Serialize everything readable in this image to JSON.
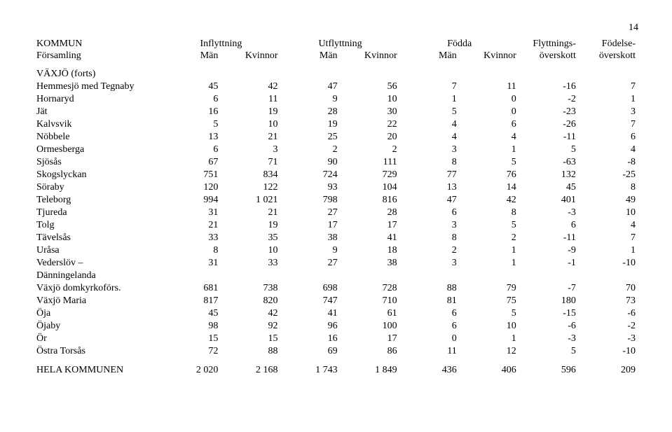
{
  "page_number": "14",
  "header": {
    "row1": {
      "c1": "KOMMUN",
      "c2": "Inflyttning",
      "c3": "Utflyttning",
      "c4": "Födda",
      "c5": "Flyttnings-",
      "c6": "Födelse-"
    },
    "row2": {
      "c1": "Församling",
      "m": "Män",
      "k": "Kvinnor",
      "c5": "överskott",
      "c6": "överskott"
    }
  },
  "section_title": "VÄXJÖ (forts)",
  "rows": [
    {
      "label": "Hemmesjö med Tegnaby",
      "v": [
        "45",
        "42",
        "47",
        "56",
        "7",
        "11",
        "-16",
        "7"
      ]
    },
    {
      "label": "Hornaryd",
      "v": [
        "6",
        "11",
        "9",
        "10",
        "1",
        "0",
        "-2",
        "1"
      ]
    },
    {
      "label": "Jät",
      "v": [
        "16",
        "19",
        "28",
        "30",
        "5",
        "0",
        "-23",
        "3"
      ]
    },
    {
      "label": "Kalvsvik",
      "v": [
        "5",
        "10",
        "19",
        "22",
        "4",
        "6",
        "-26",
        "7"
      ]
    },
    {
      "label": "Nöbbele",
      "v": [
        "13",
        "21",
        "25",
        "20",
        "4",
        "4",
        "-11",
        "6"
      ]
    },
    {
      "label": "Ormesberga",
      "v": [
        "6",
        "3",
        "2",
        "2",
        "3",
        "1",
        "5",
        "4"
      ]
    },
    {
      "label": "Sjösås",
      "v": [
        "67",
        "71",
        "90",
        "111",
        "8",
        "5",
        "-63",
        "-8"
      ]
    },
    {
      "label": "Skogslyckan",
      "v": [
        "751",
        "834",
        "724",
        "729",
        "77",
        "76",
        "132",
        "-25"
      ]
    },
    {
      "label": "Söraby",
      "v": [
        "120",
        "122",
        "93",
        "104",
        "13",
        "14",
        "45",
        "8"
      ]
    },
    {
      "label": "Teleborg",
      "v": [
        "994",
        "1 021",
        "798",
        "816",
        "47",
        "42",
        "401",
        "49"
      ]
    },
    {
      "label": "Tjureda",
      "v": [
        "31",
        "21",
        "27",
        "28",
        "6",
        "8",
        "-3",
        "10"
      ]
    },
    {
      "label": "Tolg",
      "v": [
        "21",
        "19",
        "17",
        "17",
        "3",
        "5",
        "6",
        "4"
      ]
    },
    {
      "label": "Tävelsås",
      "v": [
        "33",
        "35",
        "38",
        "41",
        "8",
        "2",
        "-11",
        "7"
      ]
    },
    {
      "label": "Uråsa",
      "v": [
        "8",
        "10",
        "9",
        "18",
        "2",
        "1",
        "-9",
        "1"
      ]
    },
    {
      "label": "Vederslöv –",
      "v": [
        "31",
        "33",
        "27",
        "38",
        "3",
        "1",
        "-1",
        "-10"
      ]
    },
    {
      "label": "Dänningelanda",
      "v": [
        "",
        "",
        "",
        "",
        "",
        "",
        "",
        ""
      ]
    },
    {
      "label": "Växjö domkyrkoförs.",
      "v": [
        "681",
        "738",
        "698",
        "728",
        "88",
        "79",
        "-7",
        "70"
      ]
    },
    {
      "label": "Växjö Maria",
      "v": [
        "817",
        "820",
        "747",
        "710",
        "81",
        "75",
        "180",
        "73"
      ]
    },
    {
      "label": "Öja",
      "v": [
        "45",
        "42",
        "41",
        "61",
        "6",
        "5",
        "-15",
        "-6"
      ]
    },
    {
      "label": "Öjaby",
      "v": [
        "98",
        "92",
        "96",
        "100",
        "6",
        "10",
        "-6",
        "-2"
      ]
    },
    {
      "label": "Ör",
      "v": [
        "15",
        "15",
        "16",
        "17",
        "0",
        "1",
        "-3",
        "-3"
      ]
    },
    {
      "label": "Östra Torsås",
      "v": [
        "72",
        "88",
        "69",
        "86",
        "11",
        "12",
        "5",
        "-10"
      ]
    }
  ],
  "total": {
    "label": "HELA KOMMUNEN",
    "v": [
      "2 020",
      "2 168",
      "1 743",
      "1 849",
      "436",
      "406",
      "596",
      "209"
    ]
  }
}
